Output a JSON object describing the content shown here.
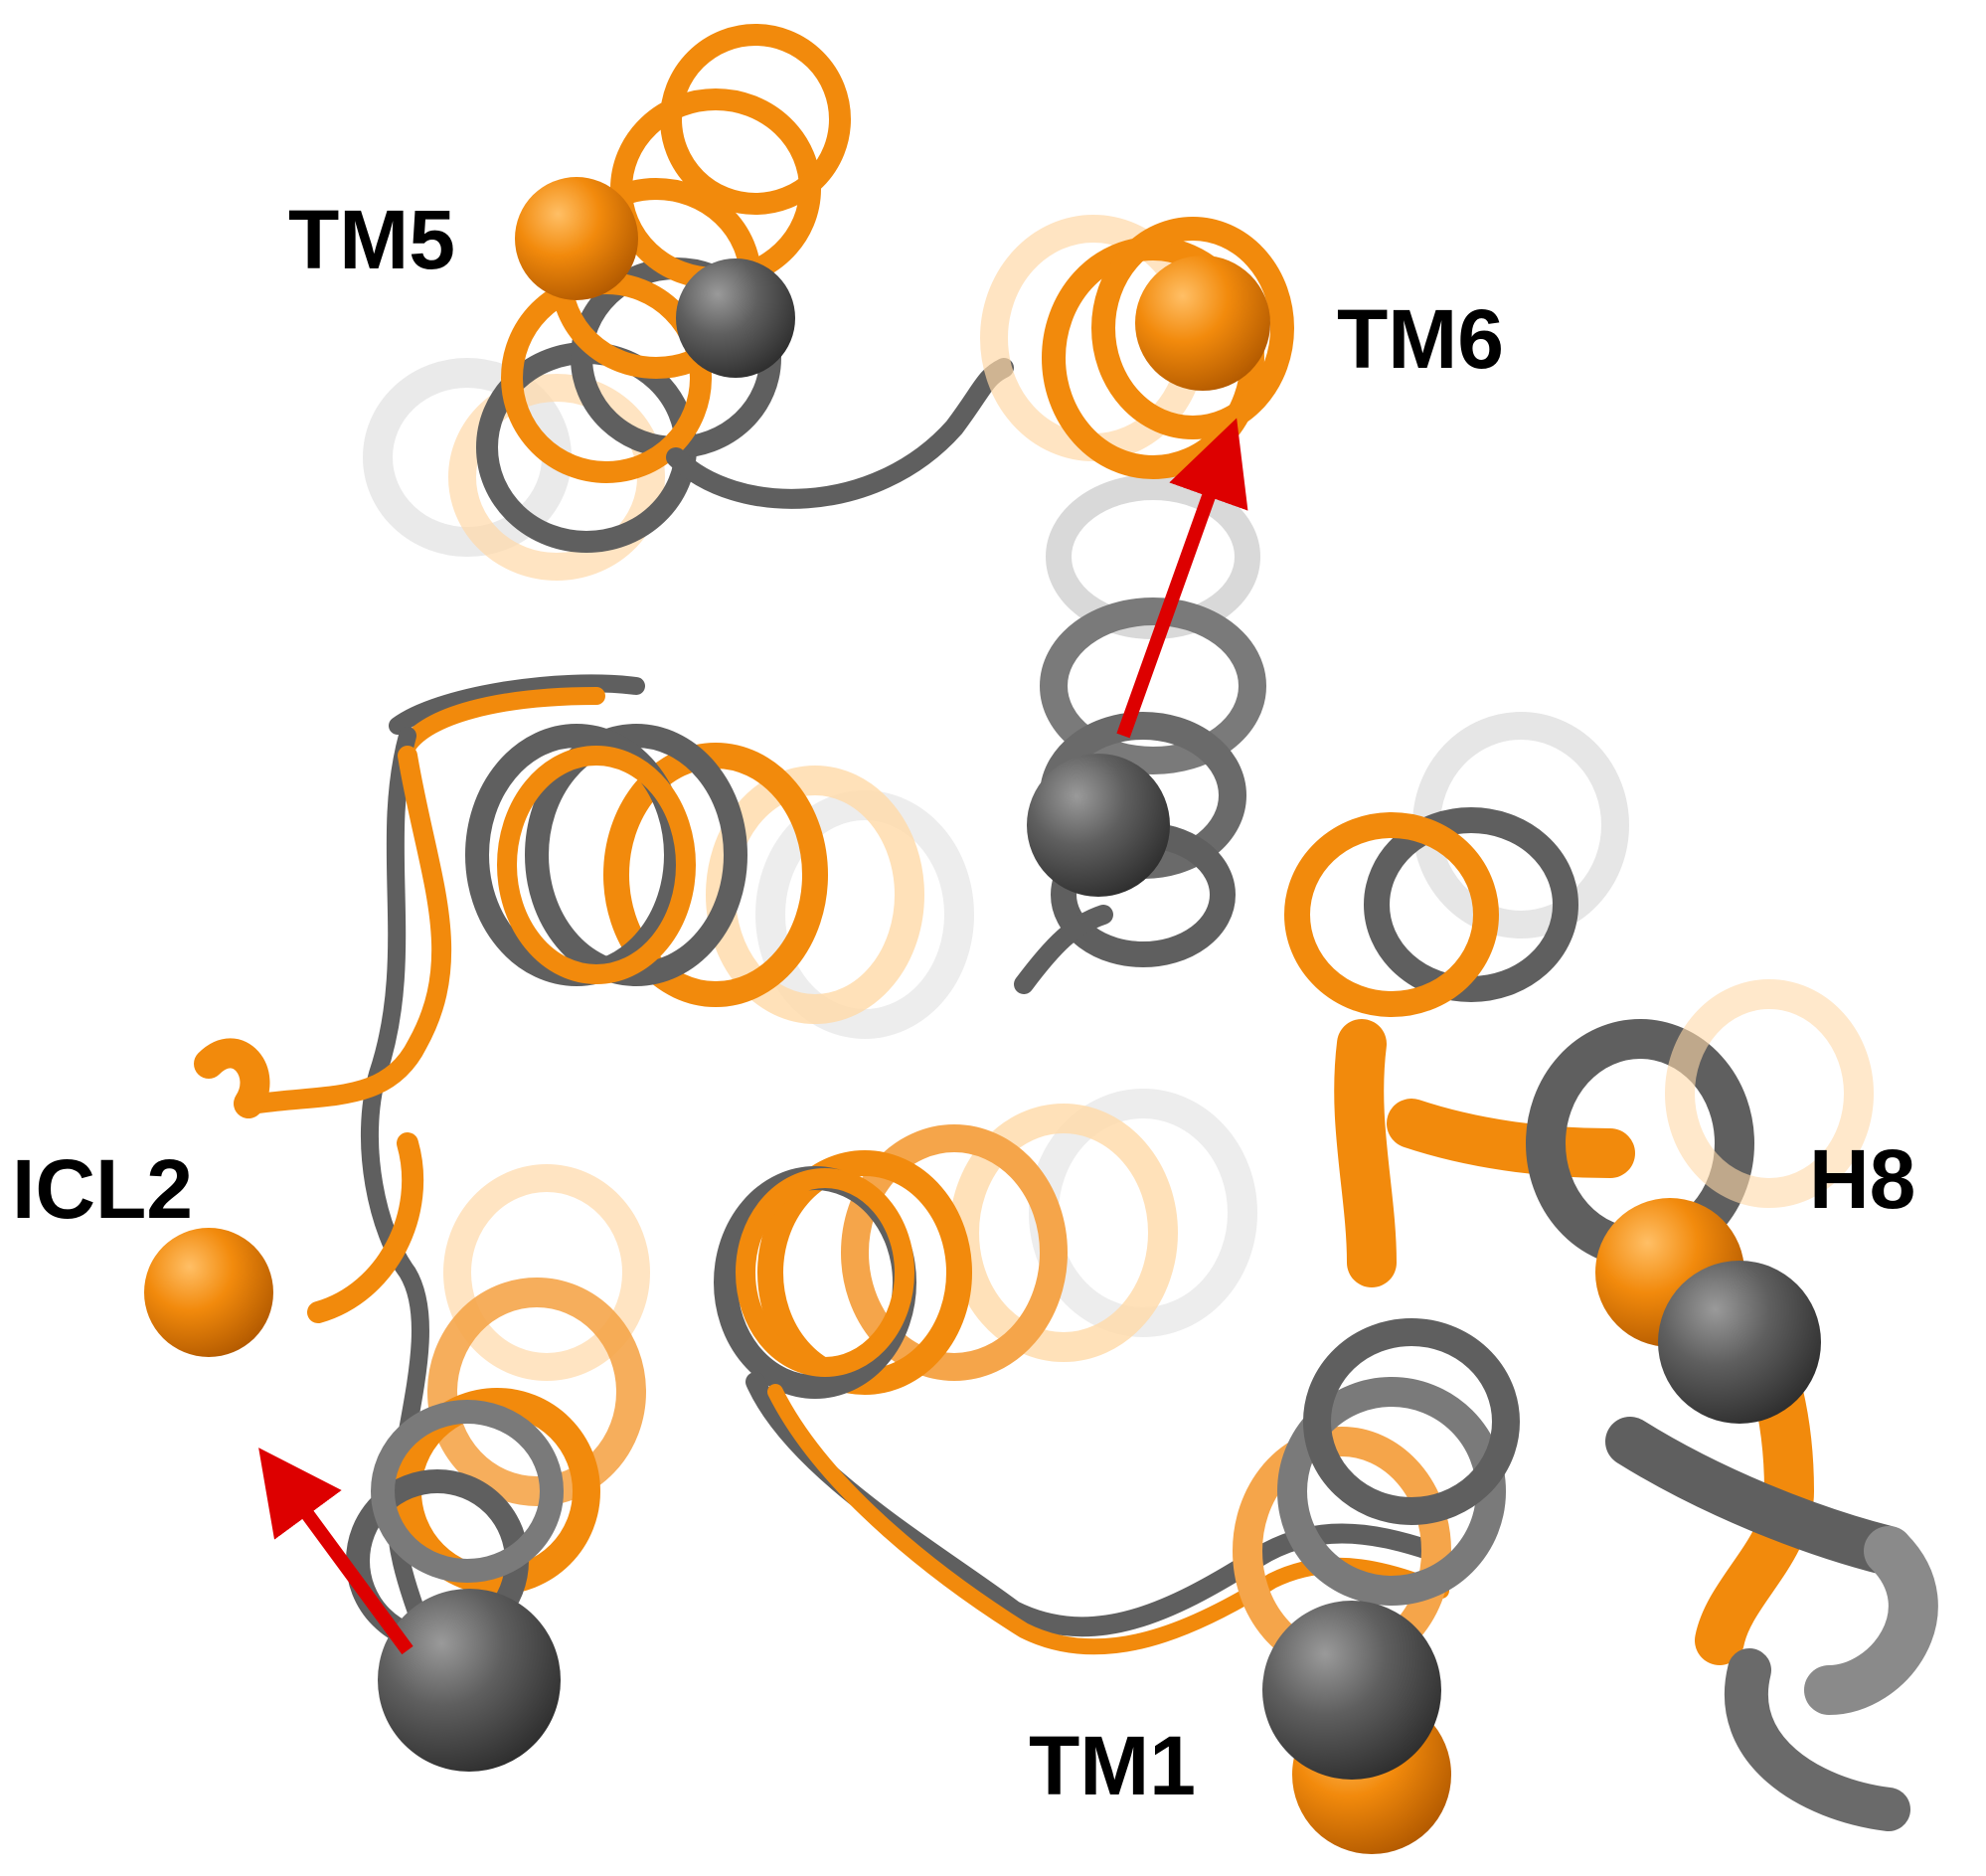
{
  "labels": {
    "tm5": "TM5",
    "tm6": "TM6",
    "icl2": "ICL2",
    "h8": "H8",
    "tm1": "TM1"
  },
  "colors": {
    "orange": "#f28a0c",
    "orange_dark": "#c96a00",
    "grey": "#5f5f5f",
    "grey_dark": "#3f3f3f",
    "arrow": "#dd0000",
    "background": "#ffffff"
  }
}
